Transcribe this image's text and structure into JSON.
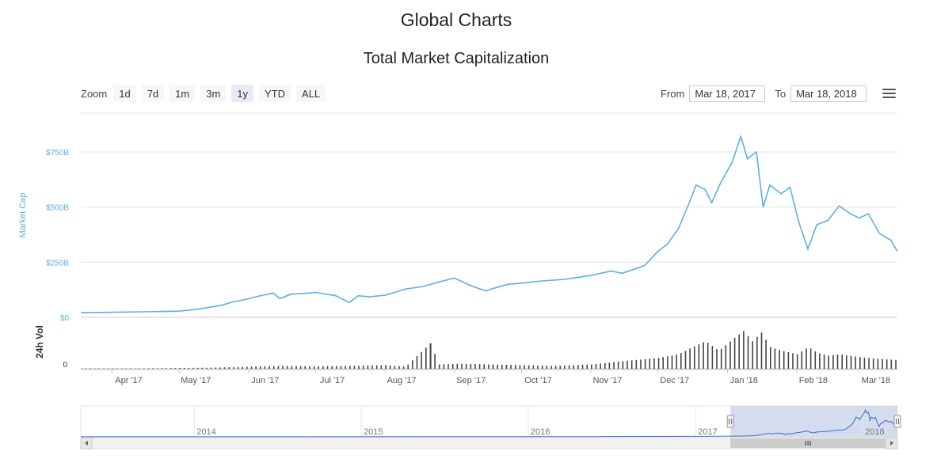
{
  "page": {
    "title": "Global Charts",
    "chart_title": "Total Market Capitalization"
  },
  "toolbar": {
    "zoom_label": "Zoom",
    "zoom_buttons": [
      "1d",
      "7d",
      "1m",
      "3m",
      "1y",
      "YTD",
      "ALL"
    ],
    "selected_zoom": "1y",
    "from_label": "From",
    "from_value": "Mar 18, 2017",
    "to_label": "To",
    "to_value": "Mar 18, 2018",
    "menu_icon": "hamburger-menu-icon"
  },
  "chart_data": {
    "type": "line",
    "title": "Total Market Capitalization",
    "colors": {
      "line": "#5bb0df",
      "volume": "#444444",
      "navigator_fill": "#ccd6eb"
    },
    "x_range": [
      "2017-03-18",
      "2018-03-18"
    ],
    "x_tick_labels": [
      "Apr '17",
      "May '17",
      "Jun '17",
      "Jul '17",
      "Aug '17",
      "Sep '17",
      "Oct '17",
      "Nov '17",
      "Dec '17",
      "Jan '18",
      "Feb '18",
      "Mar '18"
    ],
    "market_cap": {
      "ylabel": "Market Cap",
      "ylim": [
        0,
        750
      ],
      "y_ticks": [
        0,
        250,
        500,
        750
      ],
      "y_tick_labels": [
        "$0",
        "$250B",
        "$500B",
        "$750B"
      ],
      "unit": "billion USD",
      "points": [
        [
          "2017-03-18",
          21
        ],
        [
          "2017-04-01",
          23
        ],
        [
          "2017-04-15",
          25
        ],
        [
          "2017-05-01",
          28
        ],
        [
          "2017-05-10",
          38
        ],
        [
          "2017-05-20",
          55
        ],
        [
          "2017-05-25",
          70
        ],
        [
          "2017-05-31",
          82
        ],
        [
          "2017-06-05",
          95
        ],
        [
          "2017-06-12",
          110
        ],
        [
          "2017-06-15",
          85
        ],
        [
          "2017-06-20",
          105
        ],
        [
          "2017-06-25",
          108
        ],
        [
          "2017-07-01",
          113
        ],
        [
          "2017-07-10",
          98
        ],
        [
          "2017-07-16",
          67
        ],
        [
          "2017-07-20",
          98
        ],
        [
          "2017-07-25",
          93
        ],
        [
          "2017-08-01",
          100
        ],
        [
          "2017-08-10",
          128
        ],
        [
          "2017-08-18",
          140
        ],
        [
          "2017-08-25",
          160
        ],
        [
          "2017-09-01",
          178
        ],
        [
          "2017-09-08",
          145
        ],
        [
          "2017-09-15",
          120
        ],
        [
          "2017-09-18",
          130
        ],
        [
          "2017-09-25",
          150
        ],
        [
          "2017-10-01",
          155
        ],
        [
          "2017-10-10",
          165
        ],
        [
          "2017-10-20",
          172
        ],
        [
          "2017-11-01",
          190
        ],
        [
          "2017-11-10",
          210
        ],
        [
          "2017-11-15",
          200
        ],
        [
          "2017-11-25",
          235
        ],
        [
          "2017-12-01",
          300
        ],
        [
          "2017-12-05",
          330
        ],
        [
          "2017-12-10",
          400
        ],
        [
          "2017-12-15",
          520
        ],
        [
          "2017-12-18",
          600
        ],
        [
          "2017-12-22",
          580
        ],
        [
          "2017-12-25",
          520
        ],
        [
          "2017-12-29",
          610
        ],
        [
          "2018-01-03",
          700
        ],
        [
          "2018-01-07",
          820
        ],
        [
          "2018-01-10",
          720
        ],
        [
          "2018-01-14",
          750
        ],
        [
          "2018-01-17",
          500
        ],
        [
          "2018-01-20",
          600
        ],
        [
          "2018-01-25",
          560
        ],
        [
          "2018-01-29",
          590
        ],
        [
          "2018-02-02",
          430
        ],
        [
          "2018-02-06",
          310
        ],
        [
          "2018-02-10",
          420
        ],
        [
          "2018-02-15",
          440
        ],
        [
          "2018-02-20",
          505
        ],
        [
          "2018-02-25",
          470
        ],
        [
          "2018-03-01",
          450
        ],
        [
          "2018-03-05",
          470
        ],
        [
          "2018-03-10",
          380
        ],
        [
          "2018-03-15",
          350
        ],
        [
          "2018-03-18",
          300
        ]
      ]
    },
    "volume": {
      "ylabel": "24h Vol",
      "y_tick_labels": [
        "0"
      ],
      "ylim": [
        0,
        60
      ],
      "unit": "billion USD",
      "points": [
        [
          "2017-03-18",
          0.5
        ],
        [
          "2017-04-15",
          0.6
        ],
        [
          "2017-05-15",
          1.5
        ],
        [
          "2017-06-01",
          3
        ],
        [
          "2017-06-15",
          4
        ],
        [
          "2017-07-01",
          3.5
        ],
        [
          "2017-07-15",
          4
        ],
        [
          "2017-08-01",
          5
        ],
        [
          "2017-08-10",
          3
        ],
        [
          "2017-08-21",
          35
        ],
        [
          "2017-08-25",
          6
        ],
        [
          "2017-09-05",
          7
        ],
        [
          "2017-09-15",
          6
        ],
        [
          "2017-10-01",
          5
        ],
        [
          "2017-10-15",
          4
        ],
        [
          "2017-11-01",
          6
        ],
        [
          "2017-11-10",
          9
        ],
        [
          "2017-11-20",
          12
        ],
        [
          "2017-12-01",
          15
        ],
        [
          "2017-12-10",
          20
        ],
        [
          "2017-12-15",
          28
        ],
        [
          "2017-12-20",
          35
        ],
        [
          "2017-12-22",
          38
        ],
        [
          "2017-12-28",
          25
        ],
        [
          "2018-01-05",
          45
        ],
        [
          "2018-01-08",
          52
        ],
        [
          "2018-01-12",
          38
        ],
        [
          "2018-01-16",
          50
        ],
        [
          "2018-01-20",
          30
        ],
        [
          "2018-01-25",
          25
        ],
        [
          "2018-02-01",
          20
        ],
        [
          "2018-02-06",
          30
        ],
        [
          "2018-02-10",
          22
        ],
        [
          "2018-02-15",
          18
        ],
        [
          "2018-02-20",
          20
        ],
        [
          "2018-03-01",
          16
        ],
        [
          "2018-03-08",
          14
        ],
        [
          "2018-03-18",
          12
        ]
      ]
    },
    "navigator": {
      "x_tick_labels": [
        "2014",
        "2015",
        "2016",
        "2017",
        "2018"
      ],
      "x_range": [
        "2013-04-28",
        "2018-03-18"
      ],
      "selected_range": [
        "2017-03-18",
        "2018-03-18"
      ]
    }
  }
}
